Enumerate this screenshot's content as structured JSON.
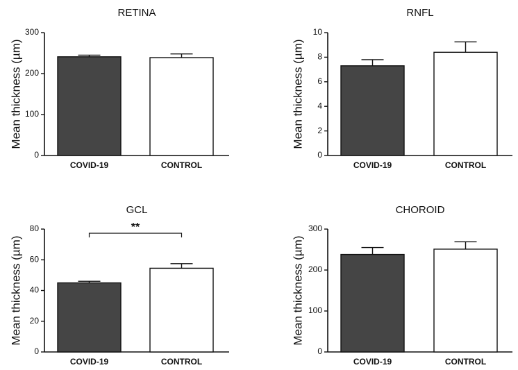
{
  "chart_data": [
    {
      "type": "bar",
      "title": "RETINA",
      "ylabel": "Mean thickness (µm)",
      "categories": [
        "COVID-19",
        "CONTROL"
      ],
      "values": [
        241,
        239
      ],
      "errors": [
        4,
        9
      ],
      "ylim": [
        0,
        300
      ],
      "yticks": [
        "0",
        "100",
        "200",
        "300"
      ],
      "bar_colors": [
        "#454545",
        "#ffffff"
      ],
      "significance": ""
    },
    {
      "type": "bar",
      "title": "RNFL",
      "ylabel": "Mean thickness (µm)",
      "categories": [
        "COVID-19",
        "CONTROL"
      ],
      "values": [
        7.3,
        8.4
      ],
      "errors": [
        0.5,
        0.85
      ],
      "ylim": [
        0,
        10
      ],
      "yticks": [
        "0",
        "2",
        "4",
        "6",
        "8",
        "10"
      ],
      "bar_colors": [
        "#454545",
        "#ffffff"
      ],
      "significance": ""
    },
    {
      "type": "bar",
      "title": "GCL",
      "ylabel": "Mean thickness (µm)",
      "categories": [
        "COVID-19",
        "CONTROL"
      ],
      "values": [
        45,
        54.5
      ],
      "errors": [
        1,
        3
      ],
      "ylim": [
        0,
        80
      ],
      "yticks": [
        "0",
        "20",
        "40",
        "60",
        "80"
      ],
      "bar_colors": [
        "#454545",
        "#ffffff"
      ],
      "significance": "**"
    },
    {
      "type": "bar",
      "title": "CHOROID",
      "ylabel": "Mean thickness (µm)",
      "categories": [
        "COVID-19",
        "CONTROL"
      ],
      "values": [
        238,
        251
      ],
      "errors": [
        17,
        18
      ],
      "ylim": [
        0,
        300
      ],
      "yticks": [
        "0",
        "100",
        "200",
        "300"
      ],
      "bar_colors": [
        "#454545",
        "#ffffff"
      ],
      "significance": ""
    }
  ]
}
